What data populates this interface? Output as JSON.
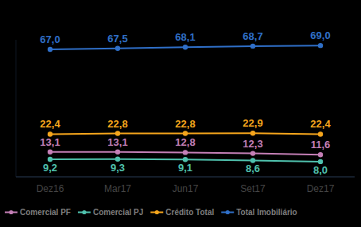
{
  "chart_data": {
    "type": "line",
    "categories": [
      "Dez16",
      "Mar17",
      "Jun17",
      "Set17",
      "Dez17"
    ],
    "series": [
      {
        "name": "Comercial PF",
        "color": "#c47fb6",
        "marker": "circle",
        "values": [
          13.1,
          13.1,
          12.8,
          12.3,
          11.6
        ],
        "value_labels": [
          "13,1",
          "13,1",
          "12,8",
          "12,3",
          "11,6"
        ]
      },
      {
        "name": "Comercial PJ",
        "color": "#4fc1ad",
        "marker": "circle",
        "values": [
          9.2,
          9.3,
          9.1,
          8.6,
          8.0
        ],
        "value_labels": [
          "9,2",
          "9,3",
          "9,1",
          "8,6",
          "8,0"
        ]
      },
      {
        "name": "Crédito Total",
        "color": "#f5a51c",
        "marker": "circle",
        "values": [
          22.4,
          22.8,
          22.8,
          22.9,
          22.4
        ],
        "value_labels": [
          "22,4",
          "22,8",
          "22,8",
          "22,9",
          "22,4"
        ]
      },
      {
        "name": "Total Imobiliário",
        "color": "#2f6fc8",
        "marker": "circle",
        "values": [
          67.0,
          67.5,
          68.1,
          68.7,
          69.0
        ],
        "value_labels": [
          "67,0",
          "67,5",
          "68,1",
          "68,7",
          "69,0"
        ]
      }
    ],
    "ylim": [
      0,
      72
    ],
    "grid": false,
    "legend": "bottom",
    "data_labels": true,
    "tick_labels": "x"
  }
}
